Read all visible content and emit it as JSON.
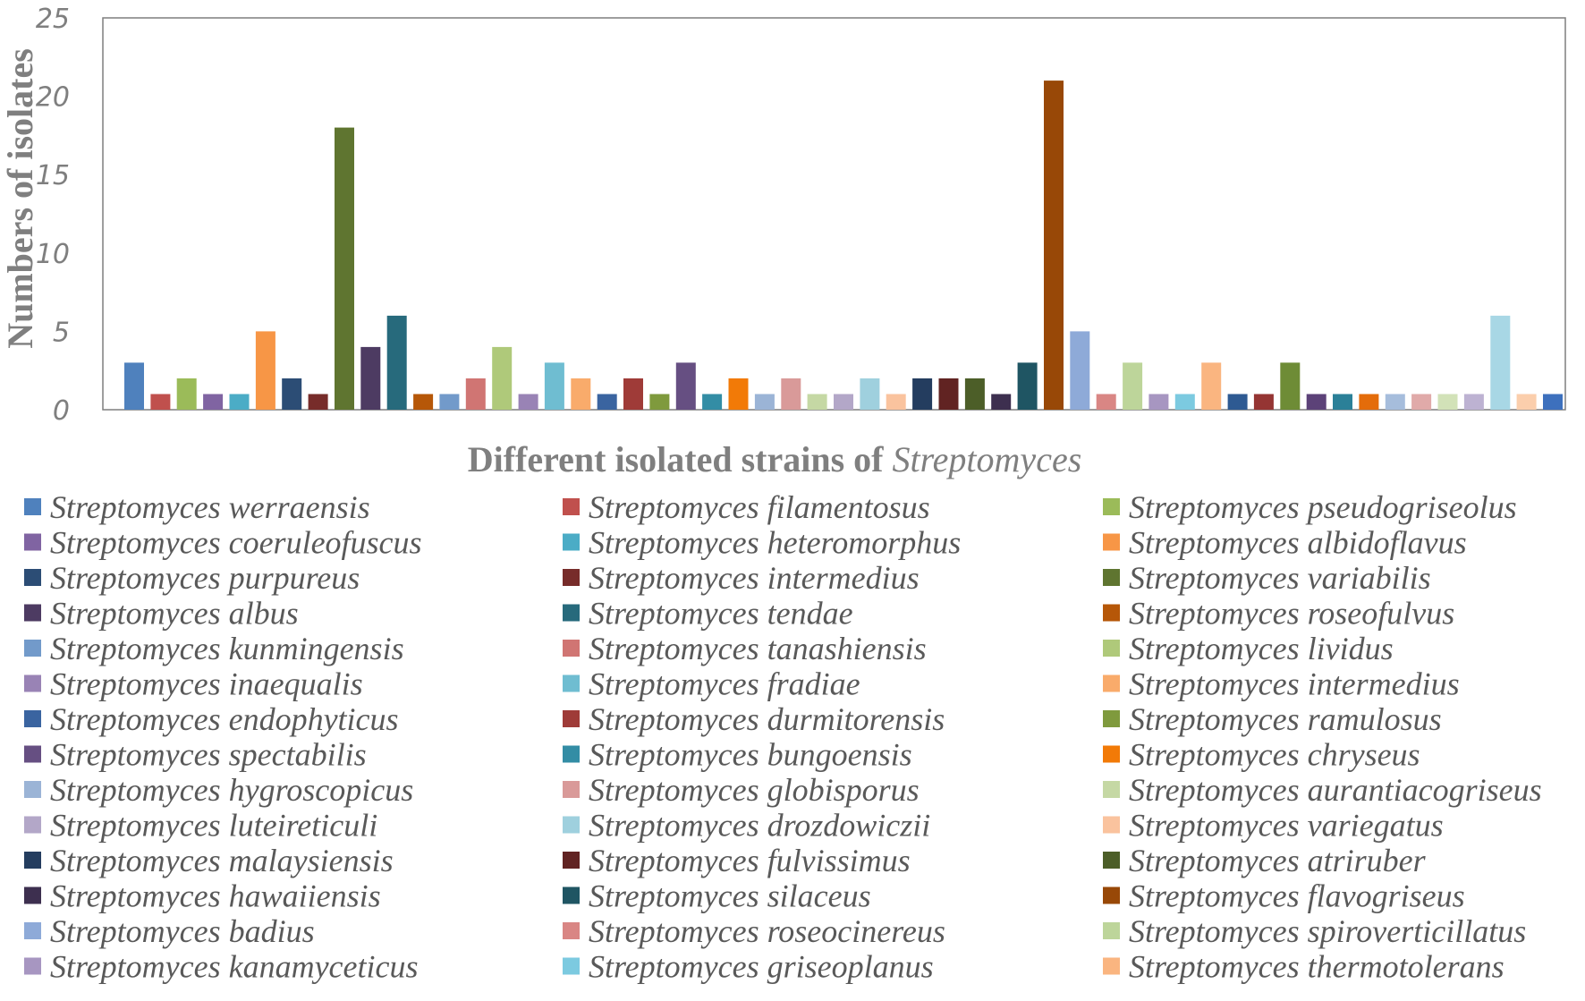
{
  "chart_data": {
    "type": "bar",
    "title": "",
    "ylabel": "Numbers of isolates",
    "xlabel_prefix": "Different isolated strains of ",
    "xlabel_italic": "Streptomyces",
    "ylim": [
      0,
      25
    ],
    "yticks": [
      0,
      5,
      10,
      15,
      20,
      25
    ],
    "legend_position": "bottom",
    "series": [
      {
        "name": "Streptomyces werraensis",
        "value": 3,
        "color": "#4f81bd"
      },
      {
        "name": "Streptomyces filamentosus",
        "value": 1,
        "color": "#c0504d"
      },
      {
        "name": "Streptomyces pseudogriseolus",
        "value": 2,
        "color": "#9bbb59"
      },
      {
        "name": "Streptomyces coeruleofuscus",
        "value": 1,
        "color": "#8064a2"
      },
      {
        "name": "Streptomyces heteromorphus",
        "value": 1,
        "color": "#4bacc6"
      },
      {
        "name": "Streptomyces albidoflavus",
        "value": 5,
        "color": "#f79646"
      },
      {
        "name": "Streptomyces purpureus",
        "value": 2,
        "color": "#2c4d75"
      },
      {
        "name": "Streptomyces intermedius",
        "value": 1,
        "color": "#772c2a"
      },
      {
        "name": "Streptomyces variabilis",
        "value": 18,
        "color": "#5f7530"
      },
      {
        "name": "Streptomyces albus",
        "value": 4,
        "color": "#4d3b62"
      },
      {
        "name": "Streptomyces tendae",
        "value": 6,
        "color": "#276a7c"
      },
      {
        "name": "Streptomyces roseofulvus",
        "value": 1,
        "color": "#b65708"
      },
      {
        "name": "Streptomyces kunmingensis",
        "value": 1,
        "color": "#729aca"
      },
      {
        "name": "Streptomyces tanashiensis",
        "value": 2,
        "color": "#d07573"
      },
      {
        "name": "Streptomyces lividus",
        "value": 4,
        "color": "#afc97a"
      },
      {
        "name": "Streptomyces inaequalis",
        "value": 1,
        "color": "#9983b5"
      },
      {
        "name": "Streptomyces fradiae",
        "value": 3,
        "color": "#6fbdd1"
      },
      {
        "name": "Streptomyces intermedius",
        "value": 2,
        "color": "#f9ab6b"
      },
      {
        "name": "Streptomyces endophyticus",
        "value": 1,
        "color": "#3a64a0"
      },
      {
        "name": "Streptomyces durmitorensis",
        "value": 2,
        "color": "#9f3b38"
      },
      {
        "name": "Streptomyces ramulosus",
        "value": 1,
        "color": "#7f9a3d"
      },
      {
        "name": "Streptomyces spectabilis",
        "value": 3,
        "color": "#664f82"
      },
      {
        "name": "Streptomyces bungoensis",
        "value": 1,
        "color": "#338da5"
      },
      {
        "name": "Streptomyces chryseus",
        "value": 2,
        "color": "#f27a07"
      },
      {
        "name": "Streptomyces hygroscopicus",
        "value": 1,
        "color": "#9bb4d6"
      },
      {
        "name": "Streptomyces globisporus",
        "value": 2,
        "color": "#d99a99"
      },
      {
        "name": "Streptomyces aurantiacogriseus",
        "value": 1,
        "color": "#c5d8a4"
      },
      {
        "name": "Streptomyces luteireticuli",
        "value": 1,
        "color": "#b3a7c8"
      },
      {
        "name": "Streptomyces drozdowiczii",
        "value": 2,
        "color": "#9fd0de"
      },
      {
        "name": "Streptomyces variegatus",
        "value": 1,
        "color": "#fac39e"
      },
      {
        "name": "Streptomyces malaysiensis",
        "value": 2,
        "color": "#243d5f"
      },
      {
        "name": "Streptomyces fulvissimus",
        "value": 2,
        "color": "#612322"
      },
      {
        "name": "Streptomyces atriruber",
        "value": 2,
        "color": "#4c5e28"
      },
      {
        "name": "Streptomyces hawaiiensis",
        "value": 1,
        "color": "#3d2f4f"
      },
      {
        "name": "Streptomyces silaceus",
        "value": 3,
        "color": "#1f5563"
      },
      {
        "name": "Streptomyces flavogriseus",
        "value": 21,
        "color": "#984807"
      },
      {
        "name": "Streptomyces badius",
        "value": 5,
        "color": "#8eaad8"
      },
      {
        "name": "Streptomyces roseocinereus",
        "value": 1,
        "color": "#d98684"
      },
      {
        "name": "Streptomyces spiroverticillatus",
        "value": 3,
        "color": "#bdd59a"
      },
      {
        "name": "Streptomyces kanamyceticus",
        "value": 1,
        "color": "#a796c1"
      },
      {
        "name": "Streptomyces griseoplanus",
        "value": 1,
        "color": "#7ccae0"
      },
      {
        "name": "Streptomyces thermotolerans",
        "value": 3,
        "color": "#fab580"
      },
      {
        "name": "",
        "value": 1,
        "color": "#2e5a92"
      },
      {
        "name": "",
        "value": 1,
        "color": "#953533"
      },
      {
        "name": "",
        "value": 3,
        "color": "#6e8c36"
      },
      {
        "name": "",
        "value": 1,
        "color": "#5c4278"
      },
      {
        "name": "",
        "value": 1,
        "color": "#2b8098"
      },
      {
        "name": "",
        "value": 1,
        "color": "#e46c0a"
      },
      {
        "name": "",
        "value": 1,
        "color": "#a6bddc"
      },
      {
        "name": "",
        "value": 1,
        "color": "#e0aaa9"
      },
      {
        "name": "",
        "value": 1,
        "color": "#d2e2b8"
      },
      {
        "name": "",
        "value": 1,
        "color": "#bdb2d2"
      },
      {
        "name": "",
        "value": 6,
        "color": "#a8d7e5"
      },
      {
        "name": "",
        "value": 1,
        "color": "#fbceac"
      },
      {
        "name": "",
        "value": 1,
        "color": "#3d70bd"
      }
    ]
  }
}
